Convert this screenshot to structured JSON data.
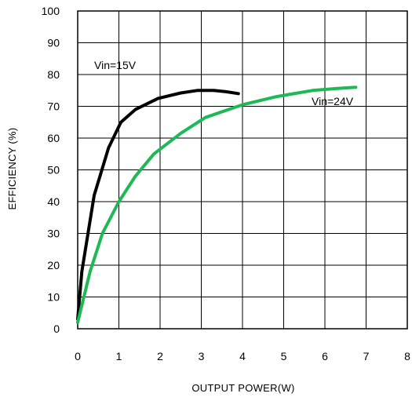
{
  "chart_data": {
    "type": "line",
    "title": "",
    "xlabel": "OUTPUT POWER(W)",
    "ylabel": "EFFICIENCY (%)",
    "xlim": [
      0,
      8
    ],
    "ylim": [
      0,
      100
    ],
    "x_ticks": [
      "0",
      "1",
      "2",
      "3",
      "4",
      "5",
      "6",
      "7",
      "8"
    ],
    "y_ticks": [
      "0",
      "10",
      "20",
      "30",
      "40",
      "50",
      "60",
      "70",
      "80",
      "90",
      "100"
    ],
    "grid": true,
    "series": [
      {
        "name": "Vin=15V",
        "color": "#000000",
        "x": [
          0,
          0.1,
          0.4,
          0.75,
          1.05,
          1.4,
          1.95,
          2.5,
          2.9,
          3.3,
          3.6,
          3.9
        ],
        "y": [
          3,
          18,
          42,
          57,
          65,
          69,
          72.5,
          74.2,
          75,
          75,
          74.6,
          74
        ]
      },
      {
        "name": "Vin=24V",
        "color": "#1db954",
        "x": [
          0,
          0.3,
          0.6,
          1.0,
          1.4,
          1.85,
          2.5,
          3.1,
          4.0,
          4.8,
          5.7,
          6.3,
          6.75
        ],
        "y": [
          2,
          18,
          30,
          40,
          48,
          55,
          61.5,
          66.5,
          70.5,
          73,
          75,
          75.6,
          76
        ]
      }
    ],
    "annotations": [
      {
        "text": "Vin=15V",
        "series": 0
      },
      {
        "text": "Vin=24V",
        "series": 1
      }
    ]
  }
}
